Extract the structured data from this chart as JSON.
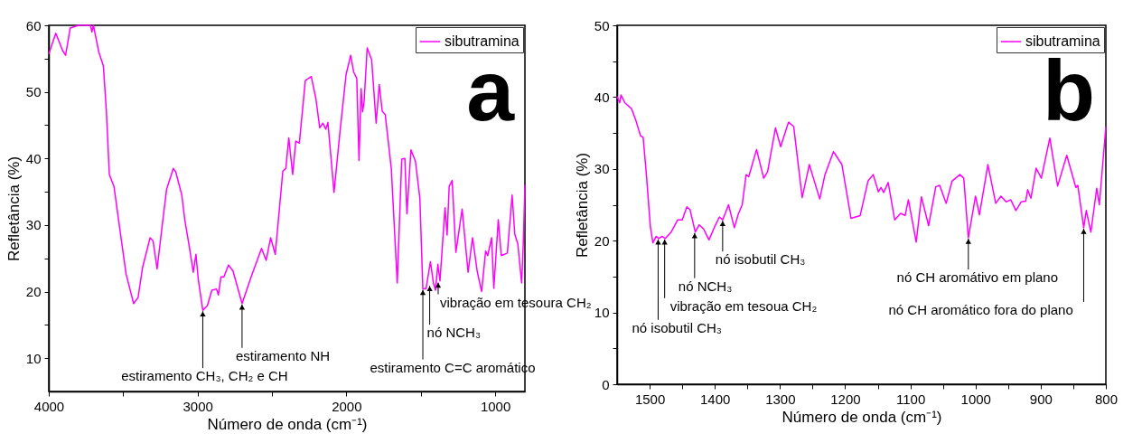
{
  "chart_data": [
    {
      "type": "line",
      "xlabel": "Número de onda (cm⁻¹)",
      "ylabel": "Refletância (%)",
      "legend": "top right",
      "grid": false,
      "xlim": [
        4000,
        800
      ],
      "xticks": [
        4000,
        {
          "value": 3500,
          "label": null
        },
        3000,
        {
          "value": 2500,
          "label": null
        },
        2000,
        {
          "value": 1500,
          "label": null
        },
        1000
      ],
      "ylim": [
        5,
        60
      ],
      "yticks": [
        10,
        {
          "value": 15,
          "label": null
        },
        20,
        {
          "value": 25,
          "label": null
        },
        30,
        {
          "value": 35,
          "label": null
        },
        40,
        {
          "value": 45,
          "label": null
        },
        50,
        {
          "value": 55,
          "label": null
        },
        60
      ],
      "x": [
        4000,
        3953,
        3907,
        3887,
        3856,
        3800,
        3720,
        3710,
        3700,
        3664,
        3633,
        3613,
        3593,
        3562,
        3512,
        3481,
        3430,
        3400,
        3370,
        3319,
        3299,
        3272,
        3238,
        3208,
        3163,
        3147,
        3106,
        3086,
        3056,
        3029,
        3011,
        2995,
        2965,
        2934,
        2904,
        2873,
        2860,
        2843,
        2823,
        2792,
        2762,
        2701,
        2640,
        2570,
        2539,
        2509,
        2478,
        2427,
        2407,
        2387,
        2361,
        2340,
        2316,
        2276,
        2236,
        2205,
        2179,
        2158,
        2138,
        2124,
        2083,
        2043,
        2002,
        1971,
        1951,
        1930,
        1915,
        1901,
        1891,
        1881,
        1860,
        1830,
        1800,
        1779,
        1759,
        1739,
        1698,
        1658,
        1628,
        1607,
        1593,
        1566,
        1536,
        1506,
        1486,
        1465,
        1435,
        1415,
        1401,
        1385,
        1371,
        1337,
        1323,
        1309,
        1289,
        1264,
        1222,
        1182,
        1152,
        1121,
        1091,
        1064,
        1050,
        1024,
        1009,
        979,
        959,
        918,
        886,
        868,
        848,
        822,
        811,
        800
      ],
      "series": [
        {
          "name": "sibutramina",
          "color": "#ff00ff",
          "values": [
            55.7,
            58.8,
            56.2,
            55.5,
            59.6,
            60,
            60,
            59,
            60,
            56,
            53.9,
            47.1,
            37.6,
            35.8,
            27.7,
            22.7,
            18.2,
            19.1,
            23.6,
            28.1,
            27.6,
            23.4,
            29.9,
            35.4,
            38.5,
            38,
            34.5,
            30.8,
            26.8,
            22.9,
            25.6,
            21.8,
            17.2,
            17.9,
            20.2,
            20.4,
            19.5,
            22.2,
            22.2,
            24,
            23.1,
            18.2,
            22.2,
            26.5,
            24.7,
            28.1,
            25.6,
            38.1,
            38.5,
            43.1,
            37.6,
            42.6,
            42.3,
            51.7,
            52.3,
            49,
            44.6,
            45.3,
            44.4,
            45.4,
            34.9,
            44,
            52.6,
            55.5,
            53,
            52,
            39.7,
            50.5,
            47,
            48.5,
            56.6,
            54.8,
            45.3,
            51.1,
            47.1,
            46.6,
            38.5,
            21.3,
            39.9,
            40,
            31.7,
            41.3,
            39.6,
            34,
            20.4,
            20.4,
            24.5,
            21.3,
            20.2,
            24.1,
            21.6,
            32.6,
            28.5,
            35.8,
            36.7,
            25.9,
            32.4,
            22.9,
            28.1,
            23.1,
            20,
            26.1,
            25.4,
            28.1,
            20.5,
            30.8,
            25.4,
            25.8,
            34.5,
            28.6,
            27.2,
            21.3,
            27.2,
            36
          ]
        }
      ],
      "annotations": [
        {
          "text": "estiramento CH₃, CH₂ e CH",
          "x": 2965,
          "y": 17.2
        },
        {
          "text": "estiramento NH",
          "x": 2701,
          "y": 18.2
        },
        {
          "text": "estiramento C=C aromático",
          "x": 1486,
          "y": 20.4
        },
        {
          "text": "nó NCH₃",
          "x": 1440,
          "y": 21
        },
        {
          "text": "vibração em tesoura CH₂",
          "x": 1383,
          "y": 21.5
        },
        "a"
      ]
    },
    {
      "type": "line",
      "xlabel": "Número de onda (cm⁻¹)",
      "ylabel": "Refletância (%)",
      "legend": "top right",
      "grid": false,
      "xlim": [
        1550,
        800
      ],
      "xticks": [
        1500,
        {
          "value": 1450,
          "label": null
        },
        1400,
        {
          "value": 1350,
          "label": null
        },
        1300,
        {
          "value": 1250,
          "label": null
        },
        1200,
        {
          "value": 1150,
          "label": null
        },
        1100,
        {
          "value": 1050,
          "label": null
        },
        1000,
        {
          "value": 950,
          "label": null
        },
        900,
        {
          "value": 850,
          "label": null
        },
        800
      ],
      "ylim": [
        0,
        50
      ],
      "yticks": [
        0,
        {
          "value": 5,
          "label": null
        },
        10,
        {
          "value": 15,
          "label": null
        },
        20,
        {
          "value": 25,
          "label": null
        },
        30,
        {
          "value": 35,
          "label": null
        },
        40,
        {
          "value": 45,
          "label": null
        },
        50
      ],
      "x": [
        1550,
        1546,
        1544,
        1538,
        1528,
        1521,
        1514,
        1510,
        1505,
        1499,
        1495,
        1490,
        1486,
        1481,
        1476,
        1467,
        1457,
        1450,
        1443,
        1438,
        1430,
        1424,
        1417,
        1409,
        1400,
        1393,
        1388,
        1379,
        1370,
        1364,
        1358,
        1352,
        1348,
        1336,
        1325,
        1319,
        1307,
        1299,
        1287,
        1279,
        1266,
        1255,
        1239,
        1231,
        1218,
        1205,
        1200,
        1191,
        1177,
        1165,
        1157,
        1149,
        1145,
        1141,
        1134,
        1124,
        1115,
        1108,
        1103,
        1091,
        1083,
        1072,
        1061,
        1055,
        1045,
        1036,
        1024,
        1018,
        1011,
        1000,
        994,
        981,
        969,
        961,
        953,
        946,
        938,
        930,
        923,
        920,
        915,
        907,
        899,
        886,
        874,
        860,
        846,
        843,
        834,
        830,
        823,
        814,
        810,
        800
      ],
      "series": [
        {
          "name": "sibutramina",
          "color": "#ff00ff",
          "values": [
            40.1,
            39.2,
            40.3,
            39.2,
            38.4,
            36.7,
            34.6,
            34.4,
            29.2,
            22,
            19.7,
            20.6,
            20.3,
            20.6,
            20.3,
            21.2,
            22.9,
            22.9,
            24.7,
            24.3,
            21.2,
            22.2,
            21.6,
            20.1,
            22,
            23.3,
            22.9,
            25,
            21.8,
            23.7,
            25,
            29.2,
            28.9,
            32.7,
            28.7,
            29.6,
            35.7,
            33.1,
            36.5,
            35.9,
            26,
            30.6,
            25.8,
            29.2,
            32.4,
            30.6,
            27.9,
            23.1,
            23.5,
            28.3,
            29.2,
            26.8,
            27.4,
            26.7,
            28.1,
            22.9,
            23.8,
            23.5,
            25.7,
            19.8,
            26.1,
            22.1,
            27.5,
            27.7,
            25.2,
            28.3,
            29.2,
            28.7,
            20.4,
            26.2,
            23.6,
            30.6,
            25.2,
            26.2,
            25.4,
            25.7,
            24.2,
            25.4,
            25.5,
            27.1,
            25.9,
            30.1,
            28.7,
            34.3,
            27.6,
            31.9,
            27.4,
            27.7,
            21.8,
            24.2,
            21.2,
            27.3,
            25,
            35.9
          ]
        }
      ],
      "annotations": [
        {
          "text": "nó isobutil CH₃",
          "x": 1388,
          "y": 22.9
        },
        {
          "text": "nó NCH₃",
          "x": 1431,
          "y": 21.2
        },
        {
          "text": "vibração em tesoua CH₂",
          "x": 1477,
          "y": 20.3
        },
        {
          "text": "nó isobutil CH₃",
          "x": 1487,
          "y": 20.3
        },
        {
          "text": "nó CH aromátivo em plano",
          "x": 1011,
          "y": 20.4
        },
        {
          "text": "nó CH aromático fora do plano",
          "x": 834,
          "y": 21.8
        },
        "b"
      ]
    }
  ]
}
